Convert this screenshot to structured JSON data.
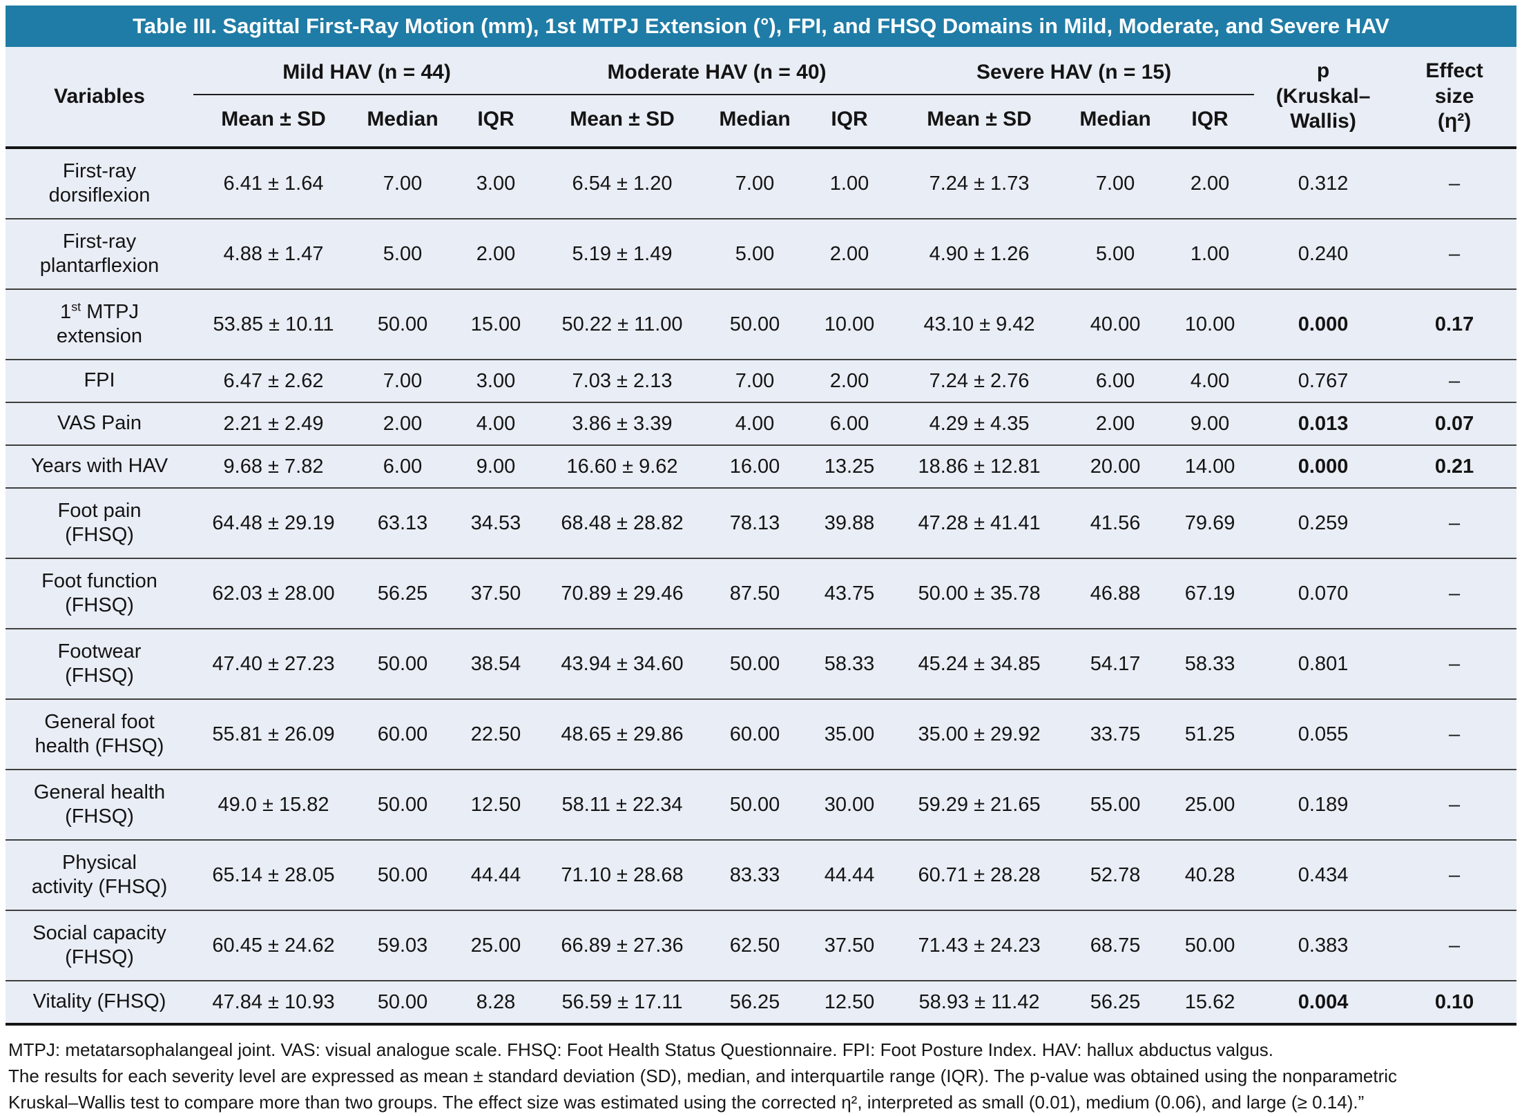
{
  "title": "Table III. Sagittal First-Ray Motion (mm), 1st MTPJ Extension (°), FPI, and FHSQ Domains in Mild, Moderate, and Severe HAV",
  "colors": {
    "header_blue": "#1f7ca6",
    "table_background": "#e9edf5",
    "rule_dark": "#151515"
  },
  "header": {
    "variables_label": "Variables",
    "groups": [
      {
        "label": "Mild HAV (n = 44)"
      },
      {
        "label": "Moderate HAV (n = 40)"
      },
      {
        "label": "Severe HAV (n = 15)"
      }
    ],
    "sub_columns": [
      "Mean ± SD",
      "Median",
      "IQR"
    ],
    "p_lines": [
      "p",
      "(Kruskal–",
      "Wallis)"
    ],
    "effect_lines": [
      "Effect",
      "size",
      "(η²)"
    ]
  },
  "rows": [
    {
      "variable_lines": [
        "First-ray",
        "dorsiflexion"
      ],
      "mild": [
        "6.41 ± 1.64",
        "7.00",
        "3.00"
      ],
      "moderate": [
        "6.54 ± 1.20",
        "7.00",
        "1.00"
      ],
      "severe": [
        "7.24 ± 1.73",
        "7.00",
        "2.00"
      ],
      "p": "0.312",
      "effect": "–",
      "significant": false
    },
    {
      "variable_lines": [
        "First-ray",
        "plantarflexion"
      ],
      "mild": [
        "4.88 ± 1.47",
        "5.00",
        "2.00"
      ],
      "moderate": [
        "5.19 ± 1.49",
        "5.00",
        "2.00"
      ],
      "severe": [
        "4.90 ± 1.26",
        "5.00",
        "1.00"
      ],
      "p": "0.240",
      "effect": "–",
      "significant": false
    },
    {
      "variable_lines": [
        "1st MTPJ",
        "extension"
      ],
      "mild": [
        "53.85 ± 10.11",
        "50.00",
        "15.00"
      ],
      "moderate": [
        "50.22 ± 11.00",
        "50.00",
        "10.00"
      ],
      "severe": [
        "43.10 ± 9.42",
        "40.00",
        "10.00"
      ],
      "p": "0.000",
      "effect": "0.17",
      "significant": true
    },
    {
      "variable_lines": [
        "FPI"
      ],
      "mild": [
        "6.47 ± 2.62",
        "7.00",
        "3.00"
      ],
      "moderate": [
        "7.03 ± 2.13",
        "7.00",
        "2.00"
      ],
      "severe": [
        "7.24 ± 2.76",
        "6.00",
        "4.00"
      ],
      "p": "0.767",
      "effect": "–",
      "significant": false
    },
    {
      "variable_lines": [
        "VAS Pain"
      ],
      "mild": [
        "2.21 ± 2.49",
        "2.00",
        "4.00"
      ],
      "moderate": [
        "3.86 ± 3.39",
        "4.00",
        "6.00"
      ],
      "severe": [
        "4.29 ± 4.35",
        "2.00",
        "9.00"
      ],
      "p": "0.013",
      "effect": "0.07",
      "significant": true
    },
    {
      "variable_lines": [
        "Years with HAV"
      ],
      "mild": [
        "9.68 ± 7.82",
        "6.00",
        "9.00"
      ],
      "moderate": [
        "16.60 ± 9.62",
        "16.00",
        "13.25"
      ],
      "severe": [
        "18.86 ± 12.81",
        "20.00",
        "14.00"
      ],
      "p": "0.000",
      "effect": "0.21",
      "significant": true
    },
    {
      "variable_lines": [
        "Foot pain",
        "(FHSQ)"
      ],
      "mild": [
        "64.48 ± 29.19",
        "63.13",
        "34.53"
      ],
      "moderate": [
        "68.48 ± 28.82",
        "78.13",
        "39.88"
      ],
      "severe": [
        "47.28 ± 41.41",
        "41.56",
        "79.69"
      ],
      "p": "0.259",
      "effect": "–",
      "significant": false
    },
    {
      "variable_lines": [
        "Foot function",
        "(FHSQ)"
      ],
      "mild": [
        "62.03 ± 28.00",
        "56.25",
        "37.50"
      ],
      "moderate": [
        "70.89 ± 29.46",
        "87.50",
        "43.75"
      ],
      "severe": [
        "50.00 ± 35.78",
        "46.88",
        "67.19"
      ],
      "p": "0.070",
      "effect": "–",
      "significant": false
    },
    {
      "variable_lines": [
        "Footwear",
        "(FHSQ)"
      ],
      "mild": [
        "47.40 ± 27.23",
        "50.00",
        "38.54"
      ],
      "moderate": [
        "43.94 ± 34.60",
        "50.00",
        "58.33"
      ],
      "severe": [
        "45.24 ± 34.85",
        "54.17",
        "58.33"
      ],
      "p": "0.801",
      "effect": "–",
      "significant": false
    },
    {
      "variable_lines": [
        "General foot",
        "health (FHSQ)"
      ],
      "mild": [
        "55.81 ± 26.09",
        "60.00",
        "22.50"
      ],
      "moderate": [
        "48.65 ± 29.86",
        "60.00",
        "35.00"
      ],
      "severe": [
        "35.00 ± 29.92",
        "33.75",
        "51.25"
      ],
      "p": "0.055",
      "effect": "–",
      "significant": false
    },
    {
      "variable_lines": [
        "General health",
        "(FHSQ)"
      ],
      "mild": [
        "49.0 ± 15.82",
        "50.00",
        "12.50"
      ],
      "moderate": [
        "58.11 ± 22.34",
        "50.00",
        "30.00"
      ],
      "severe": [
        "59.29 ± 21.65",
        "55.00",
        "25.00"
      ],
      "p": "0.189",
      "effect": "–",
      "significant": false
    },
    {
      "variable_lines": [
        "Physical",
        "activity (FHSQ)"
      ],
      "mild": [
        "65.14 ± 28.05",
        "50.00",
        "44.44"
      ],
      "moderate": [
        "71.10 ± 28.68",
        "83.33",
        "44.44"
      ],
      "severe": [
        "60.71 ± 28.28",
        "52.78",
        "40.28"
      ],
      "p": "0.434",
      "effect": "–",
      "significant": false
    },
    {
      "variable_lines": [
        "Social capacity",
        "(FHSQ)"
      ],
      "mild": [
        "60.45 ± 24.62",
        "59.03",
        "25.00"
      ],
      "moderate": [
        "66.89 ± 27.36",
        "62.50",
        "37.50"
      ],
      "severe": [
        "71.43 ± 24.23",
        "68.75",
        "50.00"
      ],
      "p": "0.383",
      "effect": "–",
      "significant": false
    },
    {
      "variable_lines": [
        "Vitality (FHSQ)"
      ],
      "mild": [
        "47.84 ± 10.93",
        "50.00",
        "8.28"
      ],
      "moderate": [
        "56.59 ± 17.11",
        "56.25",
        "12.50"
      ],
      "severe": [
        "58.93 ± 11.42",
        "56.25",
        "15.62"
      ],
      "p": "0.004",
      "effect": "0.10",
      "significant": true
    }
  ],
  "footnotes": [
    "MTPJ: metatarsophalangeal joint. VAS: visual analogue scale. FHSQ: Foot Health Status Questionnaire. FPI: Foot Posture Index. HAV: hallux abductus valgus.",
    "The results for each severity level are expressed as mean ± standard deviation (SD), median, and interquartile range (IQR). The p-value was obtained using the nonparametric",
    "Kruskal–Wallis test to compare more than two groups. The effect size was estimated using the corrected η², interpreted as small (0.01), medium (0.06), and large (≥ 0.14).”"
  ]
}
